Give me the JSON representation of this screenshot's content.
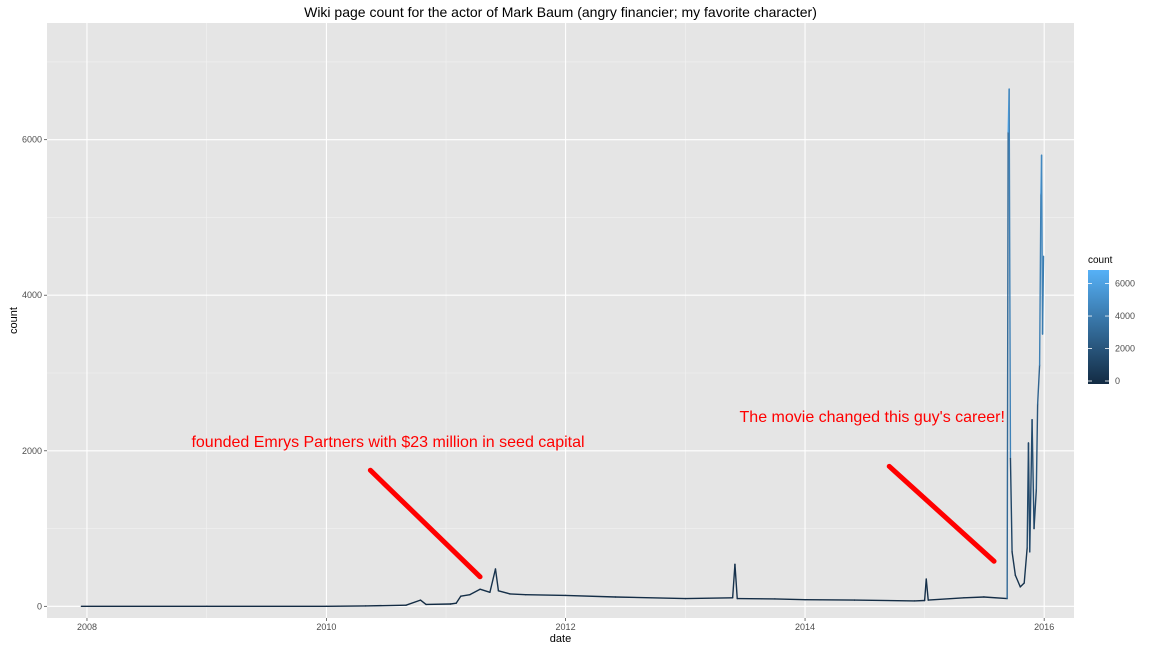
{
  "chart_data": {
    "type": "line",
    "title": "Wiki page count for the actor of Mark Baum (angry financier; my favorite character)",
    "xlabel": "date",
    "ylabel": "count",
    "xlim": [
      "2007-09-01",
      "2016-04-01"
    ],
    "ylim": [
      -150,
      7500
    ],
    "x_ticks": [
      {
        "date": "2008-01-01",
        "label": "2008"
      },
      {
        "date": "2010-01-01",
        "label": "2010"
      },
      {
        "date": "2012-01-01",
        "label": "2012"
      },
      {
        "date": "2014-01-01",
        "label": "2014"
      },
      {
        "date": "2016-01-01",
        "label": "2016"
      }
    ],
    "y_ticks": [
      0,
      2000,
      4000,
      6000
    ],
    "grid": true,
    "legend": {
      "title": "count",
      "position": "right",
      "ticks": [
        0,
        2000,
        4000,
        6000
      ],
      "color_low": "#132b43",
      "color_high": "#56b1f7"
    },
    "series": [
      {
        "points": [
          [
            "2007-12-15",
            0
          ],
          [
            "2009-01-01",
            0
          ],
          [
            "2010-01-01",
            0
          ],
          [
            "2010-05-01",
            5
          ],
          [
            "2010-09-01",
            15
          ],
          [
            "2010-10-15",
            80
          ],
          [
            "2010-11-01",
            25
          ],
          [
            "2011-01-15",
            30
          ],
          [
            "2011-02-01",
            40
          ],
          [
            "2011-02-15",
            130
          ],
          [
            "2011-03-15",
            150
          ],
          [
            "2011-04-15",
            220
          ],
          [
            "2011-05-15",
            180
          ],
          [
            "2011-06-01",
            480
          ],
          [
            "2011-06-10",
            200
          ],
          [
            "2011-07-15",
            160
          ],
          [
            "2011-09-01",
            150
          ],
          [
            "2012-01-01",
            140
          ],
          [
            "2012-06-01",
            120
          ],
          [
            "2013-01-01",
            100
          ],
          [
            "2013-05-25",
            110
          ],
          [
            "2013-06-01",
            540
          ],
          [
            "2013-06-08",
            100
          ],
          [
            "2013-10-01",
            95
          ],
          [
            "2014-01-01",
            85
          ],
          [
            "2014-06-01",
            80
          ],
          [
            "2014-12-01",
            70
          ],
          [
            "2015-01-01",
            75
          ],
          [
            "2015-01-06",
            350
          ],
          [
            "2015-01-12",
            80
          ],
          [
            "2015-05-01",
            110
          ],
          [
            "2015-07-01",
            120
          ],
          [
            "2015-09-10",
            100
          ],
          [
            "2015-09-13",
            6100
          ],
          [
            "2015-09-16",
            6650
          ],
          [
            "2015-09-20",
            1900
          ],
          [
            "2015-09-25",
            700
          ],
          [
            "2015-10-05",
            400
          ],
          [
            "2015-10-20",
            250
          ],
          [
            "2015-11-01",
            300
          ],
          [
            "2015-11-10",
            750
          ],
          [
            "2015-11-14",
            2100
          ],
          [
            "2015-11-18",
            700
          ],
          [
            "2015-11-25",
            2400
          ],
          [
            "2015-12-01",
            1000
          ],
          [
            "2015-12-08",
            1500
          ],
          [
            "2015-12-12",
            2600
          ],
          [
            "2015-12-18",
            3100
          ],
          [
            "2015-12-22",
            5300
          ],
          [
            "2015-12-24",
            5800
          ],
          [
            "2015-12-27",
            3500
          ],
          [
            "2015-12-30",
            4500
          ]
        ]
      }
    ],
    "annotations": [
      {
        "text": "founded Emrys Partners with $23 million in seed capital",
        "x": "2008-11-15",
        "y": 2050,
        "arrow_from": [
          "2010-05-15",
          1750
        ],
        "arrow_to": [
          "2011-04-15",
          380
        ]
      },
      {
        "text": "The movie changed this guy's career!",
        "x": "2013-06-15",
        "y": 2370,
        "arrow_from": [
          "2014-09-15",
          1800
        ],
        "arrow_to": [
          "2015-08-01",
          580
        ]
      }
    ]
  }
}
